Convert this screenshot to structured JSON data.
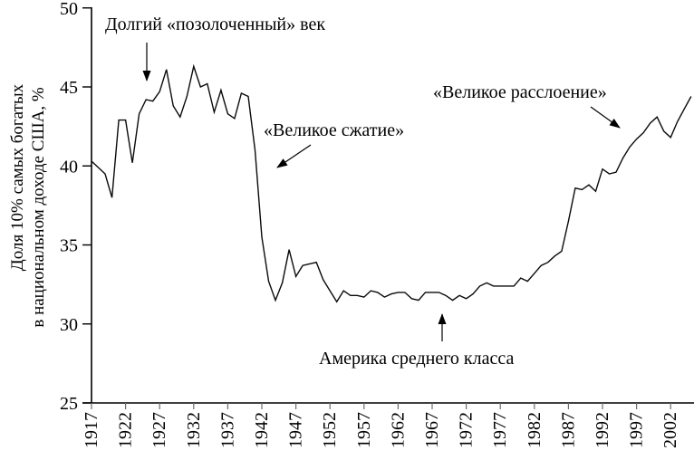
{
  "chart_data": {
    "type": "line",
    "title": "",
    "xlabel": "",
    "ylabel": "Доля 10% самых богатых в национальном доходе США, %",
    "ylabel_line1": "Доля 10% самых богатых",
    "ylabel_line2": "в национальном доходе США, %",
    "ylim": [
      25,
      50
    ],
    "xlim": [
      1917,
      2005
    ],
    "y_ticks": [
      25,
      30,
      35,
      40,
      45,
      50
    ],
    "x_ticks": [
      1917,
      1922,
      1927,
      1932,
      1937,
      1942,
      1947,
      1952,
      1957,
      1962,
      1967,
      1972,
      1977,
      1982,
      1987,
      1992,
      1997,
      2002
    ],
    "grid": false,
    "legend": "none",
    "line_color": "#000000",
    "annotations": {
      "gilded_age": "Долгий «позолоченный» век",
      "great_compression": "«Великое сжатие»",
      "great_divergence": "«Великое расслоение»",
      "middle_class_america": "Америка среднего класса"
    },
    "series": [
      {
        "name": "Доля 10% самых богатых в национальном доходе США, %",
        "x": [
          1917,
          1918,
          1919,
          1920,
          1921,
          1922,
          1923,
          1924,
          1925,
          1926,
          1927,
          1928,
          1929,
          1930,
          1931,
          1932,
          1933,
          1934,
          1935,
          1936,
          1937,
          1938,
          1939,
          1940,
          1941,
          1942,
          1943,
          1944,
          1945,
          1946,
          1947,
          1948,
          1949,
          1950,
          1951,
          1952,
          1953,
          1954,
          1955,
          1956,
          1957,
          1958,
          1959,
          1960,
          1961,
          1962,
          1963,
          1964,
          1965,
          1966,
          1967,
          1968,
          1969,
          1970,
          1971,
          1972,
          1973,
          1974,
          1975,
          1976,
          1977,
          1978,
          1979,
          1980,
          1981,
          1982,
          1983,
          1984,
          1985,
          1986,
          1987,
          1988,
          1989,
          1990,
          1991,
          1992,
          1993,
          1994,
          1995,
          1996,
          1997,
          1998,
          1999,
          2000,
          2001,
          2002,
          2003,
          2004,
          2005
        ],
        "y": [
          40.3,
          39.9,
          39.5,
          38.0,
          42.9,
          42.9,
          40.2,
          43.3,
          44.2,
          44.1,
          44.7,
          46.1,
          43.8,
          43.1,
          44.4,
          46.3,
          45.0,
          45.2,
          43.4,
          44.8,
          43.3,
          43.0,
          44.6,
          44.4,
          41.0,
          35.5,
          32.7,
          31.5,
          32.6,
          34.7,
          33.0,
          33.7,
          33.8,
          33.9,
          32.8,
          32.1,
          31.4,
          32.1,
          31.8,
          31.8,
          31.7,
          32.1,
          32.0,
          31.7,
          31.9,
          32.0,
          32.0,
          31.6,
          31.5,
          32.0,
          32.0,
          32.0,
          31.8,
          31.5,
          31.8,
          31.6,
          31.9,
          32.4,
          32.6,
          32.4,
          32.4,
          32.4,
          32.4,
          32.9,
          32.7,
          33.2,
          33.7,
          33.9,
          34.3,
          34.6,
          36.5,
          38.6,
          38.5,
          38.8,
          38.4,
          39.8,
          39.5,
          39.6,
          40.5,
          41.2,
          41.7,
          42.1,
          42.7,
          43.1,
          42.2,
          41.8,
          42.8,
          43.6,
          44.4
        ]
      }
    ]
  }
}
